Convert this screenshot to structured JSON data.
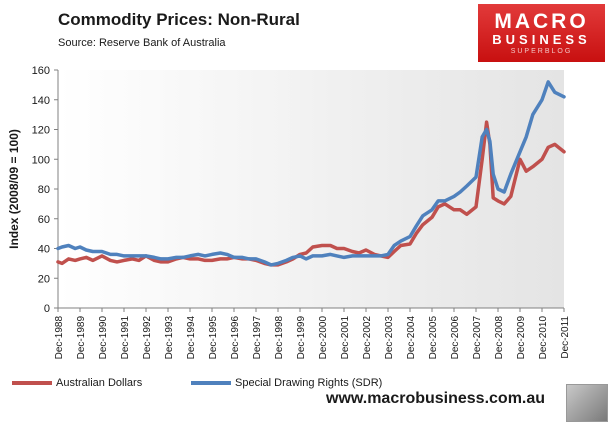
{
  "header": {
    "title": "Commodity  Prices: Non-Rural",
    "subtitle": "Source:  Reserve Bank of Australia"
  },
  "logo": {
    "line1": "MACRO",
    "line2": "BUSINESS",
    "line3": "SUPERBLOG"
  },
  "footer": {
    "website": "www.macrobusiness.com.au"
  },
  "colors": {
    "aud": "#c0504d",
    "sdr": "#4f81bd",
    "plot_bg_start": "#ffffff",
    "plot_bg_end": "#e4e4e4"
  },
  "chart_data": {
    "type": "line",
    "title": "Commodity  Prices: Non-Rural",
    "subtitle": "Source:  Reserve Bank of Australia",
    "ylabel": "Index (2008/09 = 100)",
    "xlabel": "",
    "ylim": [
      0,
      160
    ],
    "yticks": [
      0,
      20,
      40,
      60,
      80,
      100,
      120,
      140,
      160
    ],
    "xlim": [
      1988.917,
      2011.917
    ],
    "xtick_labels": [
      "Dec-1988",
      "Dec-1989",
      "Dec-1990",
      "Dec-1991",
      "Dec-1992",
      "Dec-1993",
      "Dec-1994",
      "Dec-1995",
      "Dec-1996",
      "Dec-1997",
      "Dec-1998",
      "Dec-1999",
      "Dec-2000",
      "Dec-2001",
      "Dec-2002",
      "Dec-2003",
      "Dec-2004",
      "Dec-2005",
      "Dec-2006",
      "Dec-2007",
      "Dec-2008",
      "Dec-2009",
      "Dec-2010",
      "Dec-2011"
    ],
    "grid": false,
    "legend": "bottom",
    "series": [
      {
        "name": "Australian Dollars",
        "x": [
          1988.917,
          1989.1,
          1989.4,
          1989.7,
          1989.917,
          1990.2,
          1990.5,
          1990.917,
          1991.3,
          1991.6,
          1991.917,
          1992.3,
          1992.6,
          1992.917,
          1993.3,
          1993.6,
          1993.917,
          1994.3,
          1994.6,
          1994.917,
          1995.3,
          1995.6,
          1995.917,
          1996.3,
          1996.6,
          1996.917,
          1997.3,
          1997.6,
          1997.917,
          1998.3,
          1998.6,
          1998.917,
          1999.3,
          1999.6,
          1999.917,
          2000.2,
          2000.5,
          2000.917,
          2001.3,
          2001.6,
          2001.917,
          2002.3,
          2002.6,
          2002.917,
          2003.3,
          2003.6,
          2003.917,
          2004.2,
          2004.5,
          2004.917,
          2005.2,
          2005.5,
          2005.917,
          2006.2,
          2006.5,
          2006.917,
          2007.2,
          2007.5,
          2007.917,
          2008.2,
          2008.4,
          2008.55,
          2008.7,
          2008.917,
          2009.2,
          2009.5,
          2009.917,
          2010.2,
          2010.5,
          2010.917,
          2011.2,
          2011.5,
          2011.917
        ],
        "values": [
          31,
          30,
          33,
          32,
          33,
          34,
          32,
          35,
          32,
          31,
          32,
          33,
          32,
          35,
          32,
          31,
          31,
          33,
          34,
          33,
          33,
          32,
          32,
          33,
          33,
          34,
          33,
          33,
          32,
          30,
          29,
          29,
          31,
          33,
          36,
          37,
          41,
          42,
          42,
          40,
          40,
          38,
          37,
          39,
          36,
          35,
          34,
          38,
          42,
          43,
          50,
          56,
          61,
          68,
          70,
          66,
          66,
          63,
          68,
          100,
          125,
          110,
          74,
          72,
          70,
          75,
          100,
          92,
          95,
          100,
          108,
          110,
          105
        ]
      },
      {
        "name": "Special Drawing Rights (SDR)",
        "x": [
          1988.917,
          1989.1,
          1989.4,
          1989.7,
          1989.917,
          1990.2,
          1990.5,
          1990.917,
          1991.3,
          1991.6,
          1991.917,
          1992.3,
          1992.6,
          1992.917,
          1993.3,
          1993.6,
          1993.917,
          1994.3,
          1994.6,
          1994.917,
          1995.3,
          1995.6,
          1995.917,
          1996.3,
          1996.6,
          1996.917,
          1997.3,
          1997.6,
          1997.917,
          1998.3,
          1998.6,
          1998.917,
          1999.3,
          1999.6,
          1999.917,
          2000.2,
          2000.5,
          2000.917,
          2001.3,
          2001.6,
          2001.917,
          2002.3,
          2002.6,
          2002.917,
          2003.3,
          2003.6,
          2003.917,
          2004.2,
          2004.5,
          2004.917,
          2005.2,
          2005.5,
          2005.917,
          2006.2,
          2006.5,
          2006.917,
          2007.2,
          2007.5,
          2007.917,
          2008.2,
          2008.4,
          2008.55,
          2008.7,
          2008.917,
          2009.2,
          2009.5,
          2009.917,
          2010.2,
          2010.5,
          2010.917,
          2011.2,
          2011.5,
          2011.917
        ],
        "values": [
          40,
          41,
          42,
          40,
          41,
          39,
          38,
          38,
          36,
          36,
          35,
          35,
          35,
          35,
          34,
          33,
          33,
          34,
          34,
          35,
          36,
          35,
          36,
          37,
          36,
          34,
          34,
          33,
          33,
          31,
          29,
          30,
          32,
          34,
          35,
          33,
          35,
          35,
          36,
          35,
          34,
          35,
          35,
          35,
          35,
          35,
          36,
          42,
          45,
          48,
          55,
          62,
          66,
          72,
          72,
          75,
          78,
          82,
          88,
          115,
          120,
          112,
          90,
          80,
          78,
          90,
          105,
          115,
          130,
          140,
          152,
          145,
          142
        ]
      }
    ]
  }
}
